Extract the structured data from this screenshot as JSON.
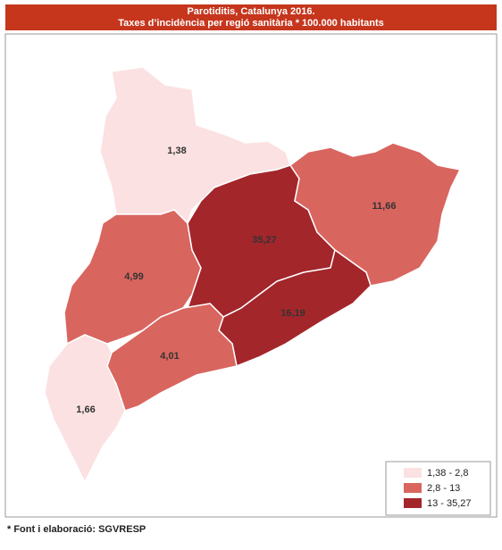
{
  "header": {
    "title": "Parotiditis, Catalunya 2016.",
    "subtitle": "Taxes d’incidència per regió sanitària * 100.000 habitants"
  },
  "regions": [
    {
      "label": "1,38",
      "color": "#fbe1e2"
    },
    {
      "label": "4,99",
      "color": "#d9655f"
    },
    {
      "label": "35,27",
      "color": "#a3262b"
    },
    {
      "label": "11,66",
      "color": "#d9655f"
    },
    {
      "label": "16,19",
      "color": "#a3262b"
    },
    {
      "label": "4,01",
      "color": "#d9655f"
    },
    {
      "label": "1,66",
      "color": "#fbe1e2"
    }
  ],
  "legend": [
    {
      "label": "1,38 - 2,8",
      "color": "#fbe1e2"
    },
    {
      "label": "2,8 - 13",
      "color": "#d9655f"
    },
    {
      "label": "13 - 35,27",
      "color": "#a3262b"
    }
  ],
  "footnote": "* Font i elaboració: SGVRESP"
}
